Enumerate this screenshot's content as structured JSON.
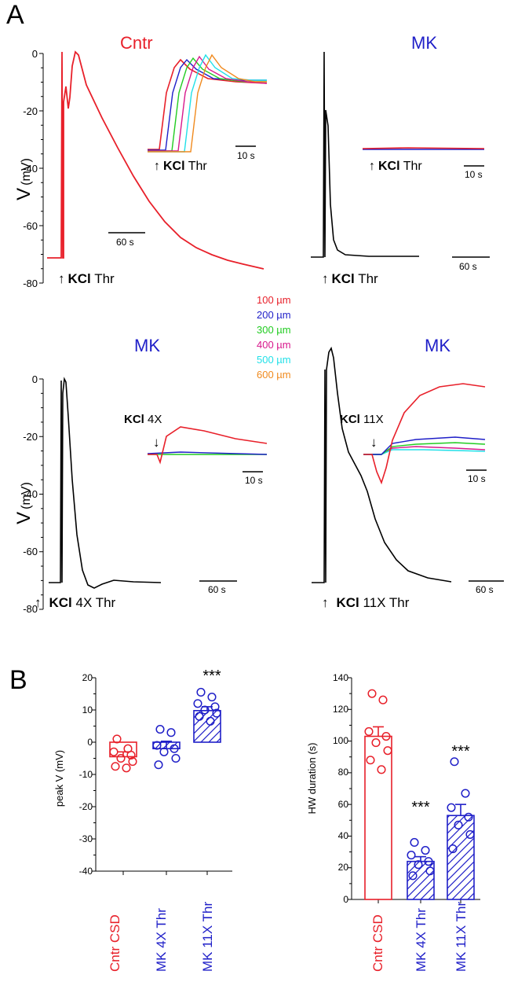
{
  "panels": {
    "a_label": "A",
    "b_label": "B"
  },
  "colors": {
    "red": "#e8202a",
    "blue": "#1f1fc8",
    "green": "#22cc22",
    "magenta": "#d8188c",
    "cyan": "#22e0e8",
    "orange": "#f08a1e",
    "black": "#000000"
  },
  "chart_data": [
    {
      "type": "line",
      "id": "trace-cntr",
      "title": "Cntr",
      "title_color": "#e8202a",
      "ylabel": "V",
      "ylabel_unit": "(mV)",
      "ylim": [
        -80,
        0
      ],
      "yticks": [
        "0",
        "-20",
        "-40",
        "-60",
        "-80"
      ],
      "scale_bar": "60 s",
      "stimulus": {
        "arrow": "↑",
        "bold": "KCl",
        "rest": " Thr"
      },
      "series": [
        {
          "name": "trace",
          "color": "#e8202a"
        }
      ],
      "inset": {
        "scale_bar": "10 s",
        "stimulus": {
          "arrow": "↑",
          "bold": "KCl",
          "rest": " Thr"
        }
      }
    },
    {
      "type": "line",
      "id": "trace-mk-thr",
      "title": "MK",
      "title_color": "#1f1fc8",
      "ylim": [
        -80,
        0
      ],
      "scale_bar": "60 s",
      "stimulus": {
        "arrow": "↑",
        "bold": "KCl",
        "rest": " Thr"
      },
      "series": [
        {
          "name": "trace",
          "color": "#000000"
        }
      ],
      "inset": {
        "scale_bar": "10 s",
        "stimulus": {
          "arrow": "↑",
          "bold": "KCl",
          "rest": " Thr"
        }
      }
    },
    {
      "type": "line",
      "id": "trace-mk-4x",
      "title": "MK",
      "title_color": "#1f1fc8",
      "ylabel": "V",
      "ylabel_unit": "(mV)",
      "ylim": [
        -80,
        0
      ],
      "yticks": [
        "0",
        "-20",
        "-40",
        "-60",
        "-80"
      ],
      "scale_bar": "60 s",
      "stimulus": {
        "arrow": "↑",
        "bold": "KCl",
        "rest": " 4X Thr"
      },
      "series": [
        {
          "name": "trace",
          "color": "#000000"
        }
      ],
      "inset": {
        "scale_bar": "10 s",
        "stimulus": {
          "arrow": "↓",
          "bold": "KCl",
          "rest": " 4X"
        }
      }
    },
    {
      "type": "line",
      "id": "trace-mk-11x",
      "title": "MK",
      "title_color": "#1f1fc8",
      "ylim": [
        -80,
        0
      ],
      "scale_bar": "60 s",
      "stimulus": {
        "arrow": "↑",
        "bold": "KCl",
        "rest": " 11X Thr"
      },
      "series": [
        {
          "name": "trace",
          "color": "#000000"
        }
      ],
      "inset": {
        "scale_bar": "10 s",
        "stimulus": {
          "arrow": "↓",
          "bold": "KCl",
          "rest": " 11X"
        }
      }
    },
    {
      "type": "bar",
      "id": "bar-peak-v",
      "ylabel": "peak V (mV)",
      "ylim": [
        -40,
        20
      ],
      "yticks": [
        "20",
        "10",
        "0",
        "-10",
        "-20",
        "-30",
        "-40"
      ],
      "categories": [
        "Cntr CSD",
        "MK 4X Thr",
        "MK 11X Thr"
      ],
      "category_colors": [
        "#e8202a",
        "#1f1fc8",
        "#1f1fc8"
      ],
      "hatched": [
        false,
        true,
        true
      ],
      "values": [
        -4.5,
        -2,
        9.8
      ],
      "errors": [
        1.5,
        2.3,
        1.2
      ],
      "significance": [
        "",
        "",
        "***"
      ],
      "points": [
        [
          1,
          -2,
          -3,
          -4,
          -5,
          -6,
          -7.5,
          -8
        ],
        [
          4,
          3,
          -1,
          -2,
          -3,
          -5,
          -7
        ],
        [
          15.5,
          14,
          12,
          11,
          10,
          9,
          8,
          6.5
        ]
      ]
    },
    {
      "type": "bar",
      "id": "bar-hw-duration",
      "ylabel": "HW duration (s)",
      "ylim": [
        0,
        140
      ],
      "yticks": [
        "140",
        "120",
        "100",
        "80",
        "60",
        "40",
        "20",
        "0"
      ],
      "categories": [
        "Cntr CSD",
        "MK 4X Thr",
        "MK 11X Thr"
      ],
      "category_colors": [
        "#e8202a",
        "#1f1fc8",
        "#1f1fc8"
      ],
      "hatched": [
        false,
        true,
        true
      ],
      "values": [
        103,
        24,
        53
      ],
      "errors": [
        6,
        3,
        7
      ],
      "significance": [
        "",
        "***",
        "***"
      ],
      "points": [
        [
          130,
          126,
          106,
          103,
          99,
          94,
          88,
          82
        ],
        [
          36,
          31,
          28,
          24,
          22,
          18,
          15
        ],
        [
          87,
          67,
          58,
          52,
          47,
          41,
          32
        ]
      ]
    }
  ],
  "legend": {
    "items": [
      {
        "label": "100 µm",
        "color": "#e8202a"
      },
      {
        "label": "200 µm",
        "color": "#1f1fc8"
      },
      {
        "label": "300 µm",
        "color": "#22cc22"
      },
      {
        "label": "400 µm",
        "color": "#d8188c"
      },
      {
        "label": "500 µm",
        "color": "#22e0e8"
      },
      {
        "label": "600 µm",
        "color": "#f08a1e"
      }
    ]
  }
}
